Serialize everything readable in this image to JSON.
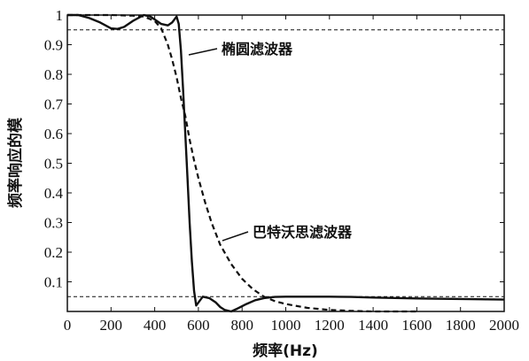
{
  "chart_data": {
    "type": "line",
    "title": "",
    "xlabel": "频率(Hz)",
    "ylabel": "频率响应的模",
    "xlim": [
      0,
      2000
    ],
    "ylim": [
      0,
      1
    ],
    "x_ticks": [
      0,
      200,
      400,
      600,
      800,
      1000,
      1200,
      1400,
      1600,
      1800,
      2000
    ],
    "x_tick_labels": [
      "0",
      "200",
      "400",
      "600",
      "800",
      "1000",
      "1200",
      "1400",
      "1600",
      "1800",
      "2000"
    ],
    "y_ticks": [
      0.1,
      0.2,
      0.3,
      0.4,
      0.5,
      0.6,
      0.7,
      0.8,
      0.9,
      1
    ],
    "y_tick_labels": [
      "0.1",
      "0.2",
      "0.3",
      "0.4",
      "0.5",
      "0.6",
      "0.7",
      "0.8",
      "0.9",
      "1"
    ],
    "grid": false,
    "legend": "none",
    "reference_lines": [
      {
        "y": 0.95,
        "style": "dashed"
      },
      {
        "y": 0.05,
        "style": "dashed"
      }
    ],
    "series": [
      {
        "name": "椭圆滤波器",
        "style": "solid",
        "x": [
          0,
          50,
          100,
          150,
          200,
          230,
          260,
          300,
          350,
          380,
          400,
          430,
          460,
          480,
          500,
          510,
          520,
          530,
          540,
          550,
          560,
          570,
          580,
          590,
          600,
          620,
          650,
          680,
          700,
          720,
          750,
          780,
          820,
          860,
          900,
          950,
          1000,
          1100,
          1200,
          1300,
          1400,
          1600,
          1800,
          2000
        ],
        "y": [
          1.0,
          1.0,
          0.99,
          0.975,
          0.955,
          0.953,
          0.96,
          0.98,
          1.0,
          0.995,
          0.985,
          0.97,
          0.965,
          0.975,
          0.995,
          0.97,
          0.88,
          0.75,
          0.6,
          0.45,
          0.3,
          0.17,
          0.07,
          0.02,
          0.03,
          0.05,
          0.045,
          0.03,
          0.015,
          0.005,
          0.0,
          0.01,
          0.025,
          0.038,
          0.045,
          0.049,
          0.05,
          0.05,
          0.05,
          0.049,
          0.047,
          0.044,
          0.042,
          0.04
        ]
      },
      {
        "name": "巴特沃思滤波器",
        "style": "dashed",
        "x": [
          0,
          100,
          200,
          300,
          350,
          400,
          430,
          460,
          480,
          500,
          520,
          540,
          560,
          580,
          600,
          630,
          660,
          700,
          750,
          800,
          850,
          900,
          950,
          1000,
          1100,
          1200,
          1300,
          1400,
          1500,
          1600
        ],
        "y": [
          1.0,
          1.0,
          1.0,
          0.998,
          0.995,
          0.98,
          0.955,
          0.9,
          0.85,
          0.79,
          0.72,
          0.66,
          0.58,
          0.51,
          0.45,
          0.37,
          0.3,
          0.225,
          0.16,
          0.11,
          0.075,
          0.05,
          0.035,
          0.025,
          0.012,
          0.005,
          0.002,
          0.0,
          0.0,
          0.0
        ]
      }
    ],
    "annotations": [
      {
        "text": "椭圆滤波器",
        "target_series": "椭圆滤波器"
      },
      {
        "text": "巴特沃思滤波器",
        "target_series": "巴特沃思滤波器"
      }
    ]
  }
}
